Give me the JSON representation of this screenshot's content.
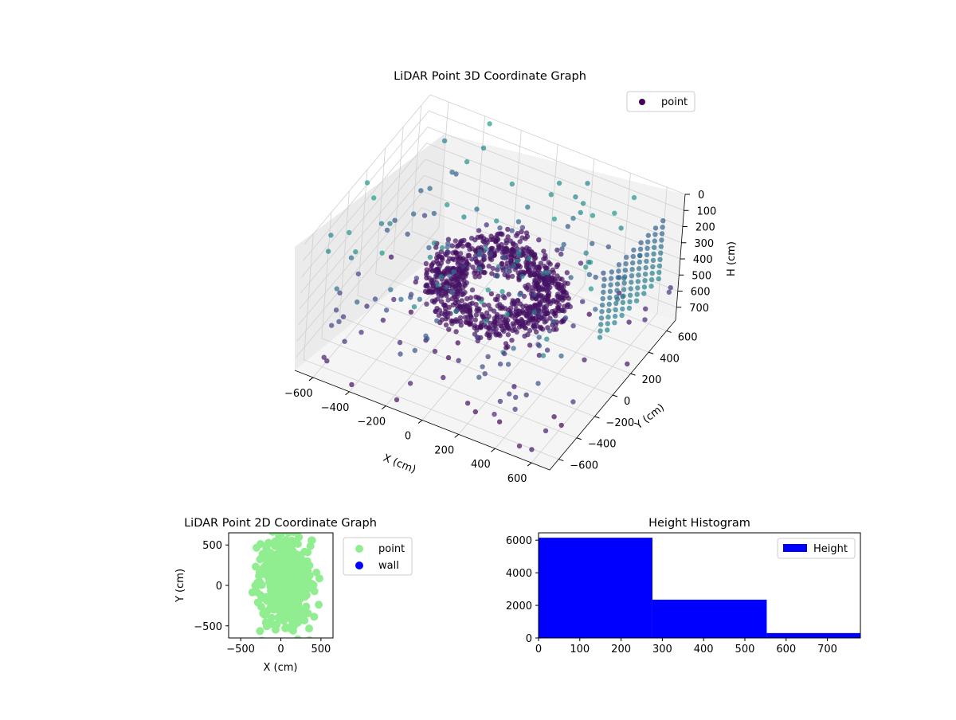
{
  "chart_data": [
    {
      "type": "scatter3d",
      "title": "LiDAR Point 3D Coordinate Graph",
      "xlabel": "X (cm)",
      "ylabel": "Y (cm)",
      "zlabel": "H (cm)",
      "x_ticks": [
        "−600",
        "−400",
        "−200",
        "0",
        "200",
        "400",
        "600"
      ],
      "y_ticks": [
        "−600",
        "−400",
        "−200",
        "0",
        "200",
        "400",
        "600"
      ],
      "z_ticks": [
        "0",
        "100",
        "200",
        "300",
        "400",
        "500",
        "600",
        "700"
      ],
      "xlim": [
        -700,
        700
      ],
      "ylim": [
        -700,
        700
      ],
      "zlim": [
        0,
        780
      ],
      "z_inverted": true,
      "grid": true,
      "legend": {
        "entries": [
          {
            "label": "point",
            "color": "#440154"
          }
        ],
        "placement": "top-right"
      },
      "colormap": "viridis"
    },
    {
      "type": "scatter",
      "title": "LiDAR Point 2D Coordinate Graph",
      "xlabel": "X (cm)",
      "ylabel": "Y (cm)",
      "x_ticks": [
        "−500",
        "0",
        "500"
      ],
      "y_ticks": [
        "500",
        "0",
        "−500"
      ],
      "xlim": [
        -650,
        650
      ],
      "ylim": [
        -650,
        650
      ],
      "series": [
        {
          "name": "point",
          "color": "#90ee90"
        },
        {
          "name": "wall",
          "color": "#0000ff"
        }
      ],
      "legend": {
        "placement": "outside-right"
      }
    },
    {
      "type": "bar",
      "title": "Height Histogram",
      "bins": [
        [
          0,
          276
        ],
        [
          276,
          553
        ],
        [
          553,
          780
        ]
      ],
      "values": [
        6150,
        2350,
        300
      ],
      "xlim": [
        0,
        780
      ],
      "ylim": [
        0,
        6450
      ],
      "x_ticks": [
        "0",
        "100",
        "200",
        "300",
        "400",
        "500",
        "600",
        "700"
      ],
      "y_ticks": [
        "0",
        "2000",
        "4000",
        "6000"
      ],
      "series": [
        {
          "name": "Height",
          "color": "#0000ff"
        }
      ],
      "legend": {
        "placement": "top-right"
      }
    }
  ]
}
